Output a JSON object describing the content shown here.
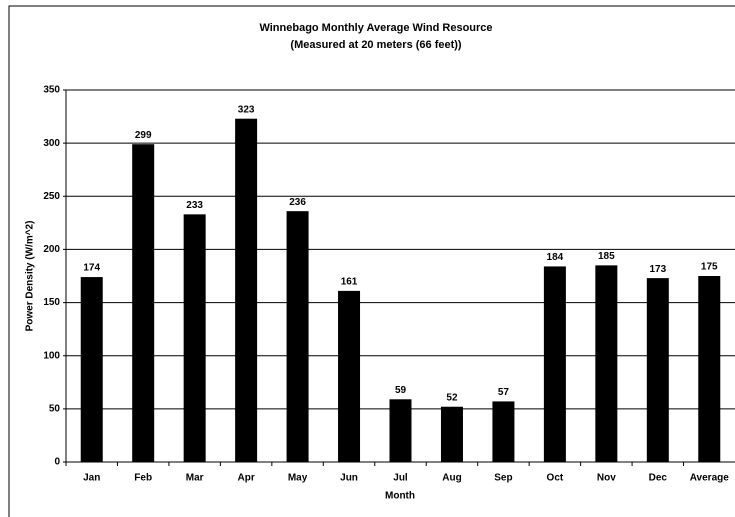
{
  "chart_data": {
    "type": "bar",
    "title": "Winnebago Monthly Average Wind Resource",
    "subtitle": "(Measured at 20 meters (66 feet))",
    "x_label": "Month",
    "y_label": "Power Density (W/m^2)",
    "categories": [
      "Jan",
      "Feb",
      "Mar",
      "Apr",
      "May",
      "Jun",
      "Jul",
      "Aug",
      "Sep",
      "Oct",
      "Nov",
      "Dec",
      "Average"
    ],
    "values": [
      174,
      299,
      233,
      323,
      236,
      161,
      59,
      52,
      57,
      184,
      185,
      173,
      175
    ],
    "color": "#000000",
    "ylim": [
      0,
      350
    ],
    "yticks": [
      0,
      50,
      100,
      150,
      200,
      250,
      300,
      350
    ],
    "grid": true
  }
}
